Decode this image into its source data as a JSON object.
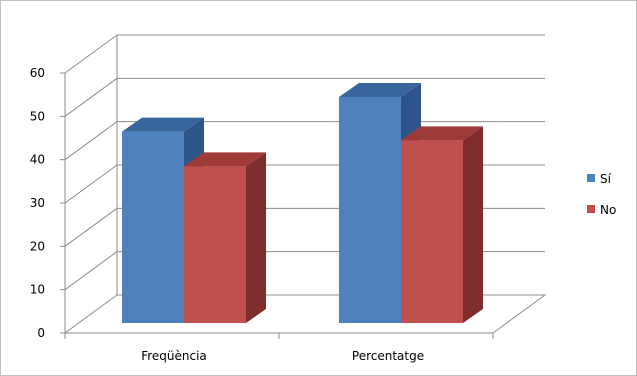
{
  "chart_data": {
    "type": "bar",
    "categories": [
      "Freqüència",
      "Percentatge"
    ],
    "series": [
      {
        "name": "Sí",
        "values": [
          46,
          54
        ],
        "color": "#4f81bd",
        "side_color": "#2f5487",
        "top_color": "#38659c"
      },
      {
        "name": "No",
        "values": [
          38,
          44
        ],
        "color": "#c0504d",
        "side_color": "#7f2d2c",
        "top_color": "#9e3b38"
      }
    ],
    "ylim": [
      0,
      60
    ],
    "yticks": [
      0,
      10,
      20,
      30,
      40,
      50,
      60
    ],
    "grid": true,
    "legend_position": "right",
    "three_d": true
  }
}
